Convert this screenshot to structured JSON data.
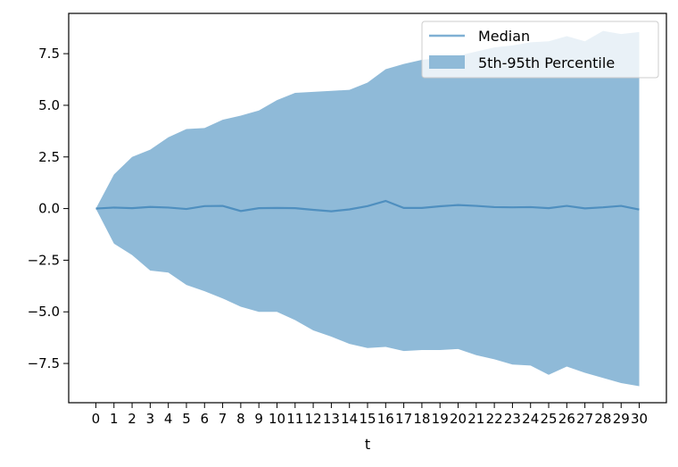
{
  "chart_data": {
    "type": "area",
    "xlabel": "t",
    "ylabel": "",
    "title": "",
    "x": [
      0,
      1,
      2,
      3,
      4,
      5,
      6,
      7,
      8,
      9,
      10,
      11,
      12,
      13,
      14,
      15,
      16,
      17,
      18,
      19,
      20,
      21,
      22,
      23,
      24,
      25,
      26,
      27,
      28,
      29,
      30
    ],
    "xticks": [
      "0",
      "1",
      "2",
      "3",
      "4",
      "5",
      "6",
      "7",
      "8",
      "9",
      "10",
      "11",
      "12",
      "13",
      "14",
      "15",
      "16",
      "17",
      "18",
      "19",
      "20",
      "21",
      "22",
      "23",
      "24",
      "25",
      "26",
      "27",
      "28",
      "29",
      "30"
    ],
    "xlim": [
      -1.5,
      31.5
    ],
    "ylim": [
      -9.4,
      9.45
    ],
    "yticks": [
      -7.5,
      -5.0,
      -2.5,
      0.0,
      2.5,
      5.0,
      7.5
    ],
    "ytick_labels": [
      "−7.5",
      "−5.0",
      "−2.5",
      "0.0",
      "2.5",
      "5.0",
      "7.5"
    ],
    "grid": false,
    "legend_position": "upper-right",
    "legend": {
      "median_label": "Median",
      "band_label": "5th-95th Percentile"
    },
    "colors": {
      "line": "#4f8fbf",
      "band": "#8fbad8",
      "legend_line": "#7fb0d4"
    },
    "series": [
      {
        "name": "Median",
        "values": [
          0.0,
          0.05,
          0.02,
          0.08,
          0.05,
          -0.02,
          0.12,
          0.13,
          -0.12,
          0.02,
          0.03,
          0.02,
          -0.06,
          -0.13,
          -0.04,
          0.12,
          0.37,
          0.03,
          0.03,
          0.11,
          0.17,
          0.13,
          0.07,
          0.06,
          0.07,
          0.02,
          0.13,
          0.01,
          0.06,
          0.13,
          -0.05
        ]
      },
      {
        "name": "5th Percentile",
        "values": [
          0.0,
          -1.7,
          -2.25,
          -3.0,
          -3.1,
          -3.7,
          -4.0,
          -4.35,
          -4.75,
          -5.0,
          -5.0,
          -5.4,
          -5.9,
          -6.2,
          -6.55,
          -6.75,
          -6.7,
          -6.9,
          -6.85,
          -6.85,
          -6.8,
          -7.1,
          -7.3,
          -7.55,
          -7.6,
          -8.05,
          -7.65,
          -7.95,
          -8.2,
          -8.45,
          -8.6
        ]
      },
      {
        "name": "95th Percentile",
        "values": [
          0.0,
          1.65,
          2.5,
          2.85,
          3.45,
          3.85,
          3.9,
          4.3,
          4.5,
          4.75,
          5.25,
          5.6,
          5.65,
          5.7,
          5.75,
          6.1,
          6.75,
          7.0,
          7.2,
          7.3,
          7.4,
          7.6,
          7.8,
          7.9,
          8.05,
          8.1,
          8.35,
          8.1,
          8.6,
          8.45,
          8.55
        ]
      }
    ]
  }
}
